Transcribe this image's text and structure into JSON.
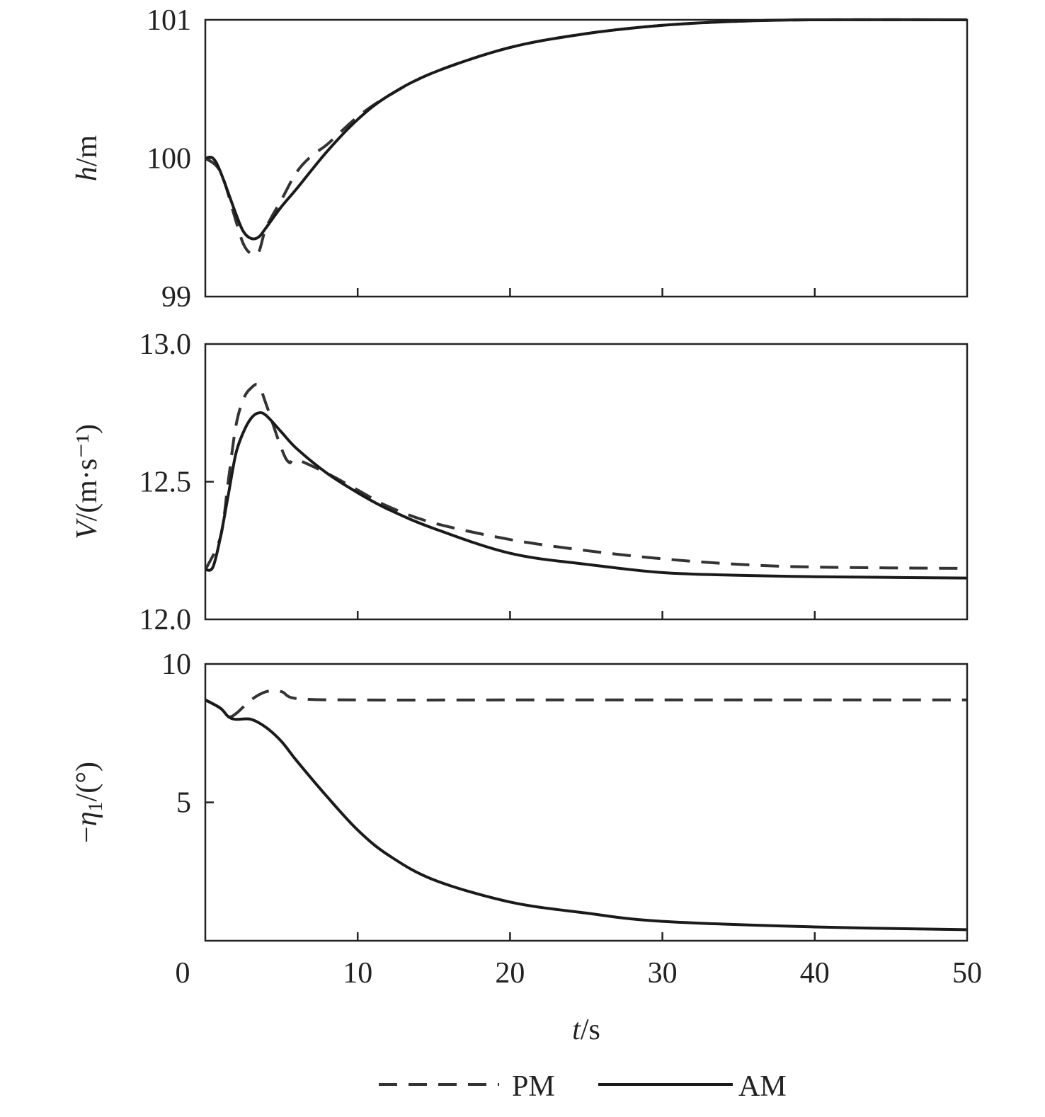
{
  "chart_data": {
    "type": "line",
    "xlabel": {
      "italic": "t",
      "rest": "/s"
    },
    "xlim": [
      0,
      50
    ],
    "xticks": [
      "0",
      "10",
      "20",
      "30",
      "40",
      "50"
    ],
    "xtick_values": [
      0,
      10,
      20,
      30,
      40,
      50
    ],
    "legend": {
      "placement": "bottom-center",
      "entries": [
        {
          "name": "PM",
          "style": "dashed"
        },
        {
          "name": "AM",
          "style": "solid"
        }
      ]
    },
    "subplots": [
      {
        "ylabel": {
          "prefix": "",
          "italic": "h",
          "sub": "",
          "rest": "/m"
        },
        "ylim": [
          99,
          101
        ],
        "yticks": [
          "99",
          "100",
          "101"
        ],
        "ytick_values": [
          99,
          100,
          101
        ],
        "series": [
          {
            "name": "PM",
            "x": [
              0,
              1,
              2,
              2.5,
              3,
              3.5,
              4,
              5,
              6,
              7,
              8,
              10,
              12,
              15,
              20,
              25,
              30,
              35,
              40,
              50
            ],
            "y": [
              100,
              99.9,
              99.55,
              99.38,
              99.31,
              99.32,
              99.5,
              99.7,
              99.9,
              100.02,
              100.1,
              100.3,
              100.45,
              100.62,
              100.8,
              100.9,
              100.96,
              100.99,
              101,
              101
            ]
          },
          {
            "name": "AM",
            "x": [
              0,
              0.5,
              1,
              2,
              2.5,
              3,
              3.5,
              4,
              5,
              6,
              8,
              10,
              12,
              15,
              20,
              25,
              30,
              35,
              40,
              50
            ],
            "y": [
              100,
              100,
              99.9,
              99.6,
              99.47,
              99.42,
              99.43,
              99.5,
              99.65,
              99.78,
              100.05,
              100.28,
              100.45,
              100.62,
              100.8,
              100.9,
              100.96,
              100.99,
              101,
              101
            ]
          }
        ]
      },
      {
        "ylabel": {
          "prefix": "",
          "italic": "V",
          "sub": "",
          "rest": "/(m·s⁻¹)"
        },
        "ylim": [
          12.0,
          13.0
        ],
        "yticks": [
          "12.0",
          "12.5",
          "13.0"
        ],
        "ytick_values": [
          12.0,
          12.5,
          13.0
        ],
        "series": [
          {
            "name": "PM",
            "x": [
              0,
              1,
              1.5,
              2,
              2.5,
              3,
              3.5,
              4,
              5,
              5.5,
              6,
              8,
              10,
              12,
              15,
              20,
              25,
              30,
              35,
              40,
              50
            ],
            "y": [
              12.18,
              12.3,
              12.5,
              12.7,
              12.8,
              12.84,
              12.85,
              12.78,
              12.62,
              12.57,
              12.58,
              12.53,
              12.47,
              12.41,
              12.35,
              12.29,
              12.25,
              12.22,
              12.2,
              12.19,
              12.185
            ]
          },
          {
            "name": "AM",
            "x": [
              0,
              0.5,
              1,
              1.5,
              2,
              2.5,
              3,
              3.5,
              4,
              5,
              6,
              8,
              10,
              12,
              15,
              20,
              25,
              30,
              35,
              40,
              50
            ],
            "y": [
              12.18,
              12.19,
              12.3,
              12.45,
              12.6,
              12.68,
              12.73,
              12.75,
              12.74,
              12.68,
              12.62,
              12.53,
              12.46,
              12.4,
              12.33,
              12.24,
              12.2,
              12.17,
              12.16,
              12.155,
              12.15
            ]
          }
        ]
      },
      {
        "ylabel": {
          "prefix": "−",
          "italic": "η",
          "sub": "1",
          "rest": "/(°)"
        },
        "ylim": [
          0,
          10
        ],
        "yticks": [
          "5",
          "10"
        ],
        "ytick_values": [
          5,
          10
        ],
        "series": [
          {
            "name": "PM",
            "x": [
              0,
              1,
              1.5,
              2,
              3,
              4,
              5,
              6,
              10,
              20,
              30,
              40,
              50
            ],
            "y": [
              8.7,
              8.4,
              8.1,
              8.2,
              8.7,
              9.0,
              9.0,
              8.75,
              8.7,
              8.7,
              8.7,
              8.7,
              8.7
            ]
          },
          {
            "name": "AM",
            "x": [
              0,
              1,
              1.5,
              2,
              3,
              4,
              5,
              6,
              8,
              10,
              12,
              15,
              20,
              25,
              30,
              40,
              50
            ],
            "y": [
              8.7,
              8.4,
              8.1,
              8.0,
              8.0,
              7.7,
              7.2,
              6.5,
              5.2,
              4.0,
              3.1,
              2.2,
              1.4,
              1.0,
              0.7,
              0.5,
              0.4
            ]
          }
        ]
      }
    ]
  }
}
